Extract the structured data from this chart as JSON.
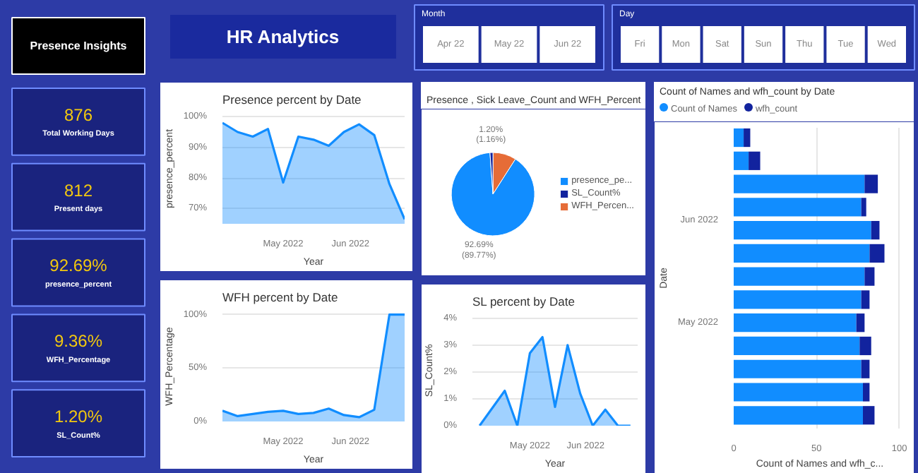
{
  "chart_data": [
    {
      "type": "other",
      "title": "HR Analytics"
    },
    {
      "type": "other",
      "title": "Month",
      "annotations": [
        "Apr 22",
        "May 22",
        "Jun 22"
      ]
    },
    {
      "type": "other",
      "title": "Day",
      "annotations": [
        "Fri",
        "Mon",
        "Sat",
        "Sun",
        "Thu",
        "Tue",
        "Wed"
      ]
    },
    {
      "type": "other",
      "annotations": [
        "Presence Insights",
        "876",
        "Total Working Days",
        "812",
        "Present days",
        "92.69%",
        "presence_percent",
        "9.36%",
        "WFH_Percentage",
        "1.20%",
        "SL_Count%"
      ]
    },
    {
      "type": "area",
      "title": "Presence percent by Date",
      "xlabel": "Year",
      "ylabel": "presence_percent",
      "x": [
        "2022-04-03",
        "2022-04-10",
        "2022-04-17",
        "2022-04-24",
        "2022-05-01",
        "2022-05-08",
        "2022-05-15",
        "2022-05-22",
        "2022-05-29",
        "2022-06-05",
        "2022-06-12",
        "2022-06-19",
        "2022-06-26"
      ],
      "series": [
        {
          "color": "#118dff",
          "values": [
            98,
            95,
            93.5,
            96,
            78.5,
            93.5,
            92.5,
            90.5,
            95,
            97.5,
            94,
            78,
            66.5
          ]
        }
      ],
      "xlim": [
        "2022-04-03",
        "2022-06-26"
      ],
      "xticks": [
        {
          "value": "2022-05-01",
          "label": "May 2022"
        },
        {
          "value": "2022-06-01",
          "label": "Jun 2022"
        }
      ],
      "ylim": [
        65,
        101
      ],
      "yticks": [
        {
          "value": 70,
          "label": "70%"
        },
        {
          "value": 80,
          "label": "80%"
        },
        {
          "value": 90,
          "label": "90%"
        },
        {
          "value": 100,
          "label": "100%"
        }
      ],
      "grid": "y"
    },
    {
      "type": "pie",
      "title": "Presence , Sick Leave_Count and WFH_Percent",
      "categories": [
        "presence_pe...",
        "SL_Count%",
        "WFH_Percen..."
      ],
      "values": [
        89.77,
        1.16,
        9.07
      ],
      "colors": [
        "#118dff",
        "#12239e",
        "#e66c37"
      ],
      "value_labels": [
        "92.69%\n(89.77%)",
        "1.20%\n(1.16%)",
        null
      ],
      "legend": "right"
    },
    {
      "type": "bar",
      "orientation": "horizontal",
      "stacked": true,
      "title": "Count of Names and wfh_count by Date",
      "xlabel": "Count of Names and wfh_c...",
      "ylabel": "Date",
      "x": [
        "2022-04-03",
        "2022-04-10",
        "2022-04-17",
        "2022-04-24",
        "2022-05-01",
        "2022-05-08",
        "2022-05-15",
        "2022-05-22",
        "2022-05-29",
        "2022-06-05",
        "2022-06-12",
        "2022-06-19",
        "2022-06-26"
      ],
      "series": [
        {
          "name": "Count of Names",
          "color": "#118dff",
          "values": [
            78,
            78,
            77,
            76,
            74,
            77,
            79,
            82,
            83,
            77,
            79,
            9,
            6
          ]
        },
        {
          "name": "wfh_count",
          "color": "#12239e",
          "values": [
            7,
            4,
            5,
            7,
            5,
            5,
            6,
            9,
            5,
            3,
            8,
            7,
            4
          ]
        }
      ],
      "xlim": [
        0,
        104
      ],
      "xticks": [
        0,
        50,
        100
      ],
      "ylim": [
        "2022-03-30",
        "2022-06-29"
      ],
      "yticks": [
        {
          "value": "2022-05-01",
          "label": "May 2022"
        },
        {
          "value": "2022-06-01",
          "label": "Jun 2022"
        }
      ],
      "grid": "x",
      "legend": "top left"
    },
    {
      "type": "area",
      "title": "WFH percent by Date",
      "xlabel": "Year",
      "ylabel": "WFH_Percentage",
      "x": [
        "2022-04-03",
        "2022-04-10",
        "2022-04-17",
        "2022-04-24",
        "2022-05-01",
        "2022-05-08",
        "2022-05-15",
        "2022-05-22",
        "2022-05-29",
        "2022-06-05",
        "2022-06-12",
        "2022-06-19",
        "2022-06-26"
      ],
      "series": [
        {
          "color": "#118dff",
          "values": [
            10,
            5,
            7,
            9,
            10,
            7,
            8,
            12,
            6,
            4,
            11,
            100,
            100
          ]
        }
      ],
      "xlim": [
        "2022-04-03",
        "2022-06-26"
      ],
      "xticks": [
        {
          "value": "2022-05-01",
          "label": "May 2022"
        },
        {
          "value": "2022-06-01",
          "label": "Jun 2022"
        }
      ],
      "ylim": [
        0,
        103
      ],
      "yticks": [
        {
          "value": 0,
          "label": "0%"
        },
        {
          "value": 50,
          "label": "50%"
        },
        {
          "value": 100,
          "label": "100%"
        }
      ],
      "grid": "y"
    },
    {
      "type": "area",
      "title": "SL percent by Date",
      "xlabel": "Year",
      "ylabel": "SL_Count%",
      "x": [
        "2022-04-03",
        "2022-04-17",
        "2022-04-24",
        "2022-05-01",
        "2022-05-08",
        "2022-05-15",
        "2022-05-22",
        "2022-05-29",
        "2022-06-05",
        "2022-06-12",
        "2022-06-19",
        "2022-06-26"
      ],
      "series": [
        {
          "color": "#118dff",
          "values": [
            0,
            1.3,
            0,
            2.7,
            3.3,
            0.7,
            3.0,
            1.2,
            0,
            0.6,
            0,
            0
          ]
        }
      ],
      "xlim": [
        "2022-03-30",
        "2022-06-30"
      ],
      "xticks": [
        {
          "value": "2022-05-01",
          "label": "May 2022"
        },
        {
          "value": "2022-06-01",
          "label": "Jun 2022"
        }
      ],
      "ylim": [
        0,
        4.1
      ],
      "yticks": [
        {
          "value": 0,
          "label": "0%"
        },
        {
          "value": 1,
          "label": "1%"
        },
        {
          "value": 2,
          "label": "2%"
        },
        {
          "value": 3,
          "label": "3%"
        },
        {
          "value": 4,
          "label": "4%"
        }
      ],
      "grid": "y"
    }
  ]
}
